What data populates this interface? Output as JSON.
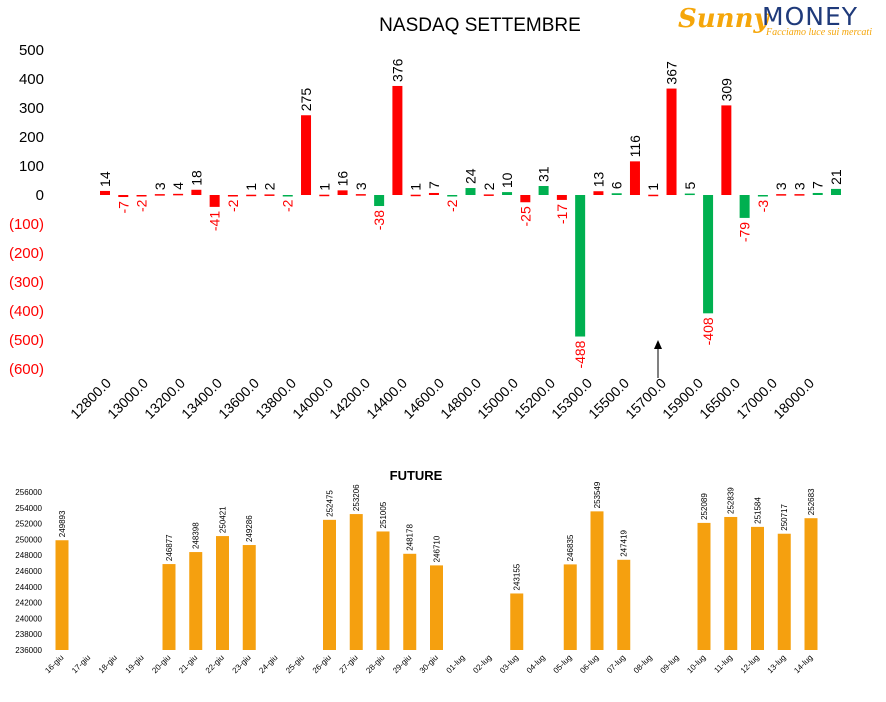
{
  "logo": {
    "brand_a": "Sunny",
    "brand_b": "MONEY",
    "tagline": "Facciamo luce sui mercati"
  },
  "colors": {
    "positive": "#ff0000",
    "negative": "#00b050",
    "future_bar": "#f5a00f",
    "axis_text": "#000000",
    "negative_label": "#ff0000"
  },
  "chart_data": [
    {
      "type": "bar",
      "title": "NASDAQ SETTEMBRE",
      "xlabel": "",
      "ylabel": "",
      "ylim": [
        -600,
        500
      ],
      "y_ticks": [
        "500",
        "400",
        "300",
        "200",
        "100",
        "0",
        "(100)",
        "(200)",
        "(300)",
        "(400)",
        "(500)",
        "(600)"
      ],
      "y_tick_values": [
        500,
        400,
        300,
        200,
        100,
        0,
        -100,
        -200,
        -300,
        -400,
        -500,
        -600
      ],
      "x_tick_labels": [
        "12800.0",
        "13000.0",
        "13200.0",
        "13400.0",
        "13600.0",
        "13800.0",
        "14000.0",
        "14200.0",
        "14400.0",
        "14600.0",
        "14800.0",
        "15000.0",
        "15200.0",
        "15300.0",
        "15500.0",
        "15700.0",
        "15900.0",
        "16500.0",
        "17000.0",
        "18000.0"
      ],
      "grid": false,
      "bars": [
        {
          "value": 14,
          "color": "red",
          "label": "14"
        },
        {
          "value": -7,
          "color": "red",
          "label": "-7"
        },
        {
          "value": -2,
          "color": "red",
          "label": "-2"
        },
        {
          "value": 3,
          "color": "red",
          "label": "3"
        },
        {
          "value": 4,
          "color": "red",
          "label": "4"
        },
        {
          "value": 18,
          "color": "red",
          "label": "18"
        },
        {
          "value": -41,
          "color": "red",
          "label": "-41"
        },
        {
          "value": -2,
          "color": "red",
          "label": "-2"
        },
        {
          "value": 1,
          "color": "red",
          "label": "1"
        },
        {
          "value": 2,
          "color": "red",
          "label": "2"
        },
        {
          "value": -2,
          "color": "green",
          "label": "-2"
        },
        {
          "value": 275,
          "color": "red",
          "label": "275"
        },
        {
          "value": 1,
          "color": "red",
          "label": "1"
        },
        {
          "value": 16,
          "color": "red",
          "label": "16"
        },
        {
          "value": 3,
          "color": "red",
          "label": "3"
        },
        {
          "value": -38,
          "color": "green",
          "label": "-38"
        },
        {
          "value": 376,
          "color": "red",
          "label": "376"
        },
        {
          "value": 1,
          "color": "red",
          "label": "1"
        },
        {
          "value": 7,
          "color": "red",
          "label": "7"
        },
        {
          "value": -2,
          "color": "green",
          "label": "-2"
        },
        {
          "value": 24,
          "color": "green",
          "label": "24"
        },
        {
          "value": 2,
          "color": "red",
          "label": "2"
        },
        {
          "value": 10,
          "color": "green",
          "label": "10"
        },
        {
          "value": -25,
          "color": "red",
          "label": "-25"
        },
        {
          "value": 31,
          "color": "green",
          "label": "31"
        },
        {
          "value": -17,
          "color": "red",
          "label": "-17"
        },
        {
          "value": -488,
          "color": "green",
          "label": "-488"
        },
        {
          "value": 13,
          "color": "red",
          "label": "13"
        },
        {
          "value": 6,
          "color": "green",
          "label": "6"
        },
        {
          "value": 116,
          "color": "red",
          "label": "116"
        },
        {
          "value": 1,
          "color": "red",
          "label": "1"
        },
        {
          "value": 367,
          "color": "red",
          "label": "367"
        },
        {
          "value": 5,
          "color": "green",
          "label": "5"
        },
        {
          "value": -408,
          "color": "green",
          "label": "-408"
        },
        {
          "value": 309,
          "color": "red",
          "label": "309"
        },
        {
          "value": -79,
          "color": "green",
          "label": "-79"
        },
        {
          "value": -3,
          "color": "green",
          "label": "-3"
        },
        {
          "value": 3,
          "color": "red",
          "label": "3"
        },
        {
          "value": 3,
          "color": "red",
          "label": "3"
        },
        {
          "value": 7,
          "color": "green",
          "label": "7"
        },
        {
          "value": 21,
          "color": "green",
          "label": "21"
        }
      ],
      "annotations": [
        "arrow pointing up near 15700.0"
      ]
    },
    {
      "type": "bar",
      "title": "FUTURE",
      "xlabel": "",
      "ylabel": "",
      "ylim": [
        236000,
        256000
      ],
      "y_ticks": [
        "256000",
        "254000",
        "252000",
        "250000",
        "248000",
        "246000",
        "244000",
        "242000",
        "240000",
        "238000",
        "236000"
      ],
      "y_tick_values": [
        256000,
        254000,
        252000,
        250000,
        248000,
        246000,
        244000,
        242000,
        240000,
        238000,
        236000
      ],
      "grid": false,
      "categories": [
        "16-giu",
        "17-giu",
        "18-giu",
        "19-giu",
        "20-giu",
        "21-giu",
        "22-giu",
        "23-giu",
        "24-giu",
        "25-giu",
        "26-giu",
        "27-giu",
        "28-giu",
        "29-giu",
        "30-giu",
        "01-lug",
        "02-lug",
        "03-lug",
        "04-lug",
        "05-lug",
        "06-lug",
        "07-lug",
        "08-lug",
        "09-lug",
        "10-lug",
        "11-lug",
        "12-lug",
        "13-lug",
        "14-lug"
      ],
      "values": [
        249893,
        null,
        null,
        null,
        246877,
        248398,
        250421,
        249286,
        null,
        null,
        252475,
        253206,
        251005,
        248178,
        246710,
        null,
        null,
        243155,
        null,
        246835,
        253549,
        247419,
        null,
        null,
        252089,
        252839,
        251584,
        250717,
        252683
      ]
    }
  ]
}
